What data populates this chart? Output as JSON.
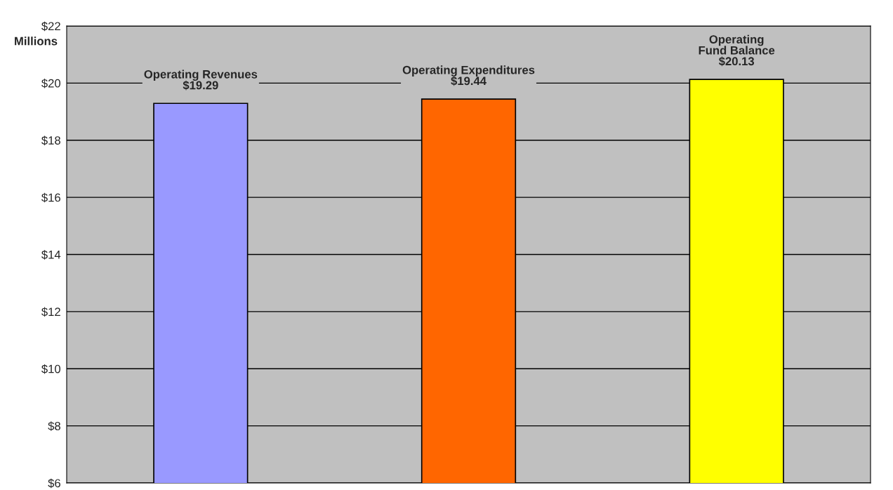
{
  "chart_data": {
    "type": "bar",
    "categories": [
      "Operating Revenues",
      "Operating Expenditures",
      "Operating\nFund Balance"
    ],
    "values": [
      19.29,
      19.44,
      20.13
    ],
    "colors": [
      "#9999ff",
      "#ff6600",
      "#ffff00"
    ],
    "value_labels": [
      "$19.29",
      "$19.44",
      "$20.13"
    ],
    "ylabel": "Millions",
    "ylim": [
      6,
      22
    ],
    "yticks": [
      {
        "value": 6,
        "label": "$6"
      },
      {
        "value": 8,
        "label": "$8"
      },
      {
        "value": 10,
        "label": "$10"
      },
      {
        "value": 12,
        "label": "$12"
      },
      {
        "value": 14,
        "label": "$14"
      },
      {
        "value": 16,
        "label": "$16"
      },
      {
        "value": 18,
        "label": "$18"
      },
      {
        "value": 20,
        "label": "$20"
      },
      {
        "value": 22,
        "label": "$22"
      }
    ],
    "grid": "y",
    "tick_labels": "y"
  }
}
